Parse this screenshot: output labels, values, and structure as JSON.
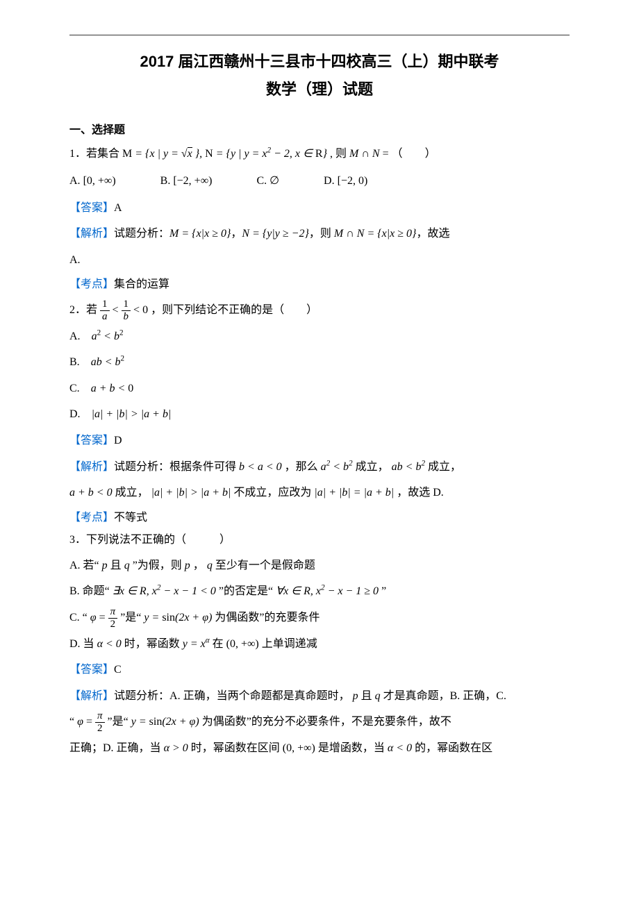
{
  "colors": {
    "body": "#000000",
    "highlight": "#0066cc",
    "rule": "#333333",
    "bg": "#ffffff"
  },
  "fonts": {
    "body": "SimSun",
    "heading": "SimHei",
    "math": "Cambria Math",
    "title_pt": 22,
    "body_pt": 16
  },
  "title": {
    "line1": "2017 届江西赣州十三县市十四校高三（上）期中联考",
    "line2": "数学（理）试题"
  },
  "section_heading": "一、选择题",
  "labels": {
    "answer": "【答案】",
    "analysis": "【解析】",
    "analysis_prefix": "试题分析：",
    "topic": "【考点】"
  },
  "q1": {
    "stem_pre": "1．若集合 ",
    "stem_math": "M = { x | y = √x } , N = { y | y = x² − 2, x ∈ R }",
    "stem_post": " , 则 M ∩ N = （　　）",
    "opts": {
      "A": "[0, +∞)",
      "B": "[−2, +∞)",
      "C": "∅",
      "D": "[−2, 0)"
    },
    "answer": "A",
    "analysis": "M = { x | x ≥ 0 }，N = { y | y ≥ −2 }，则 M ∩ N = { x | x ≥ 0 }，故选",
    "analysis_tail": "A.",
    "topic": "集合的运算"
  },
  "q2": {
    "stem_pre": "2．若 ",
    "stem_frac": {
      "lhs_num": "1",
      "lhs_den": "a",
      "rhs_num": "1",
      "rhs_den": "b"
    },
    "stem_mid": " < ",
    "stem_tail": " < 0 ，则下列结论不正确的是（　　）",
    "opts": {
      "A": "a² < b²",
      "B": "ab < b²",
      "C": "a + b < 0",
      "D": "|a| + |b| > |a + b|"
    },
    "answer": "D",
    "analysis_1": "根据条件可得 b < a < 0 ，那么 a² < b² 成立， ab < b² 成立，",
    "analysis_2": "a + b < 0 成立， |a| + |b| > |a + b| 不成立，应改为 |a| + |b| = |a + b| ，故选 D.",
    "topic": "不等式"
  },
  "q3": {
    "stem": "3．下列说法不正确的（　　　）",
    "optA": "A. 若“ p 且 q ”为假，则 p ， q 至少有一个是假命题",
    "optB_pre": "B. 命题“ ∃x ∈ R, x² − x − 1 < 0 ”的否定是“ ∀x ∈ R, x² − x − 1 ≥ 0 ”",
    "optC_pre": "C. “ ",
    "optC_frac": {
      "num": "π",
      "den": "2"
    },
    "optC_mid": "φ = ",
    "optC_post": " ”是“ y = sin(2x + φ) 为偶函数”的充要条件",
    "optD": "D. 当 α < 0 时，幂函数 y = xᵅ 在 (0, +∞) 上单调递减",
    "answer": "C",
    "analysis_1": "A. 正确，当两个命题都是真命题时， p 且 q 才是真命题，B. 正确，C.",
    "analysis_2_pre": "“ ",
    "analysis_2_mid": "φ = ",
    "analysis_2_post": " ”是“ y = sin(2x + φ) 为偶函数”的充分不必要条件，不是充要条件，故不",
    "analysis_3": "正确；D. 正确，当 α > 0 时，幂函数在区间 (0, +∞) 是增函数，当 α < 0 的，幂函数在区"
  }
}
